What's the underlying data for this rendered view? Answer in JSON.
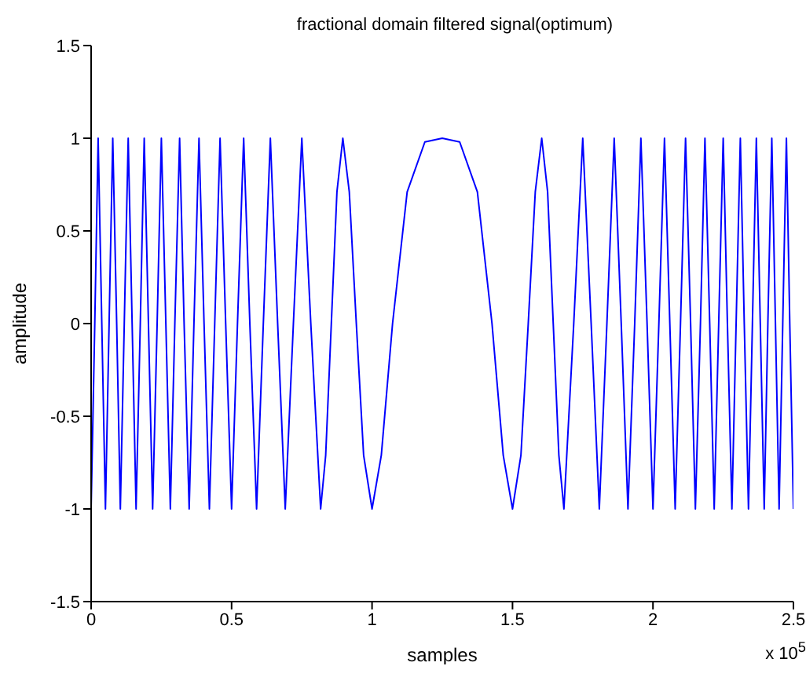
{
  "chart_data": {
    "type": "line",
    "title": "fractional domain filtered signal(optimum)",
    "xlabel": "samples",
    "ylabel": "amplitude",
    "annotations": [
      "x 10$^{5}$"
    ],
    "x": [
      0,
      0.013,
      0.025,
      0.038,
      0.051,
      0.064,
      0.077,
      0.091,
      0.104,
      0.118,
      0.132,
      0.146,
      0.16,
      0.175,
      0.189,
      0.204,
      0.219,
      0.235,
      0.25,
      0.266,
      0.282,
      0.298,
      0.315,
      0.331,
      0.349,
      0.366,
      0.384,
      0.402,
      0.421,
      0.44,
      0.459,
      0.479,
      0.5,
      0.521,
      0.543,
      0.565,
      0.589,
      0.613,
      0.638,
      0.664,
      0.691,
      0.72,
      0.75,
      0.782,
      0.817,
      0.835,
      0.855,
      0.875,
      0.896,
      0.919,
      0.944,
      0.97,
      1,
      1.033,
      1.073,
      1.125,
      1.188,
      1.25,
      1.312,
      1.375,
      1.427,
      1.467,
      1.5,
      1.53,
      1.556,
      1.581,
      1.604,
      1.625,
      1.645,
      1.665,
      1.683,
      1.718,
      1.75,
      1.78,
      1.809,
      1.836,
      1.862,
      1.887,
      1.911,
      1.935,
      1.957,
      1.979,
      2,
      2.021,
      2.041,
      2.06,
      2.079,
      2.098,
      2.116,
      2.134,
      2.151,
      2.169,
      2.185,
      2.202,
      2.218,
      2.234,
      2.25,
      2.265,
      2.281,
      2.296,
      2.311,
      2.325,
      2.34,
      2.354,
      2.368,
      2.382,
      2.396,
      2.409,
      2.423,
      2.436,
      2.449,
      2.462,
      2.475,
      2.487,
      2.5
    ],
    "series": [
      {
        "color": "#0000ff",
        "values": [
          -1,
          0,
          1,
          0,
          -1,
          0,
          1,
          0,
          -1,
          0,
          1,
          0,
          -1,
          0,
          1,
          0,
          -1,
          0,
          1,
          0,
          -1,
          0,
          1,
          0,
          -1,
          0,
          1,
          0,
          -1,
          0,
          1,
          0,
          -1,
          0,
          1,
          0,
          -1,
          0,
          1,
          0,
          -1,
          0,
          1,
          0,
          -1,
          -0.71,
          0,
          0.71,
          1,
          0.71,
          0,
          -0.71,
          -1,
          -0.71,
          0,
          0.71,
          0.98,
          1,
          0.98,
          0.71,
          0,
          -0.71,
          -1,
          -0.71,
          0,
          0.71,
          1,
          0.71,
          0,
          -0.71,
          -1,
          0,
          1,
          0,
          -1,
          0,
          1,
          0,
          -1,
          0,
          1,
          0,
          -1,
          0,
          1,
          0,
          -1,
          0,
          1,
          0,
          -1,
          0,
          1,
          0,
          -1,
          0,
          1,
          0,
          -1,
          0,
          1,
          0,
          -1,
          0,
          1,
          0,
          -1,
          0,
          1,
          0,
          -1,
          0,
          1,
          0,
          -1
        ]
      }
    ],
    "xlim": [
      0,
      2.5
    ],
    "xticks": [
      0,
      0.5,
      1,
      1.5,
      2,
      2.5
    ],
    "ylim": [
      -1.5,
      1.5
    ],
    "yticks": [
      -1.5,
      -1,
      -0.5,
      0,
      0.5,
      1,
      1.5
    ],
    "grid": false,
    "marker": "none",
    "line_style": "solid"
  }
}
